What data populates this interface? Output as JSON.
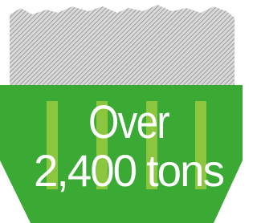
{
  "headline": {
    "line1": "Over",
    "line2": "2,400 tons"
  }
}
